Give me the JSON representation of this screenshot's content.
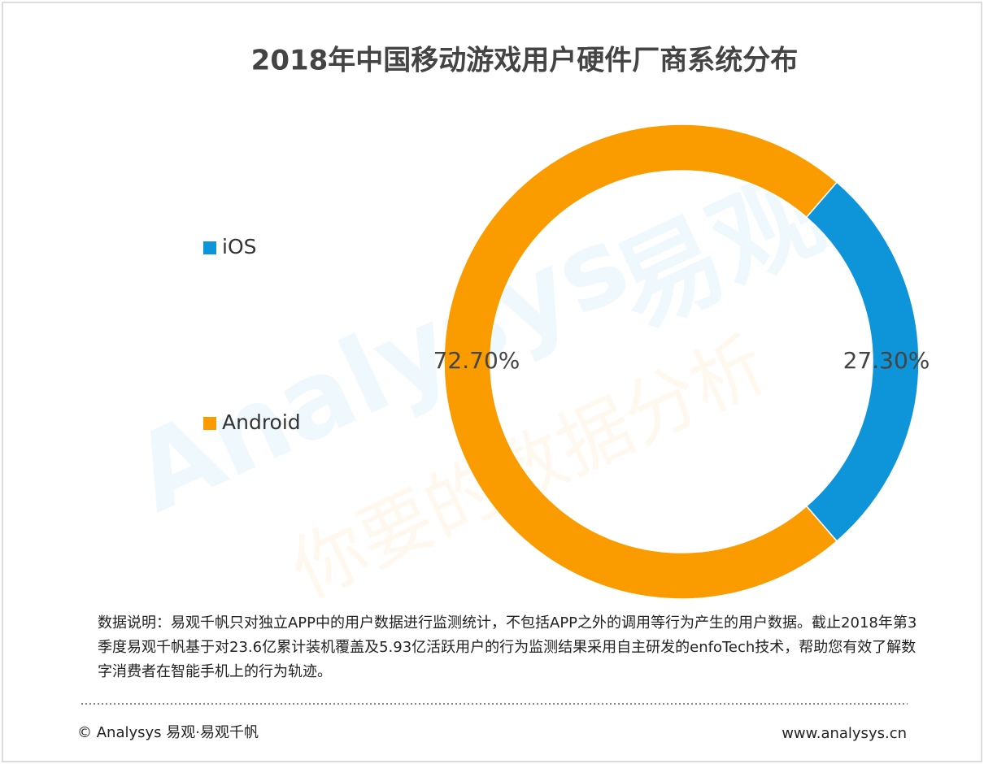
{
  "chart_data": {
    "type": "donut",
    "title": "2018年中国移动游戏用户硬件厂商系统分布",
    "categories": [
      "iOS",
      "Android"
    ],
    "values": [
      27.3,
      72.7
    ],
    "value_labels": [
      "27.30%",
      "72.70%"
    ],
    "colors": [
      "#0e95d9",
      "#fa9c00"
    ],
    "legend": "left",
    "watermark": [
      "Analysys",
      "易观",
      "你要的数据分析"
    ]
  },
  "note": "数据说明：易观千帆只对独立APP中的用户数据进行监测统计，不包括APP之外的调用等行为产生的用户数据。截止2018年第3季度易观千帆基于对23.6亿累计装机覆盖及5.93亿活跃用户的行为监测结果采用自主研发的enfoTech技术，帮助您有效了解数字消费者在智能手机上的行为轨迹。",
  "footer": {
    "left": "© Analysys 易观·易观千帆",
    "right": "www.analysys.cn"
  }
}
